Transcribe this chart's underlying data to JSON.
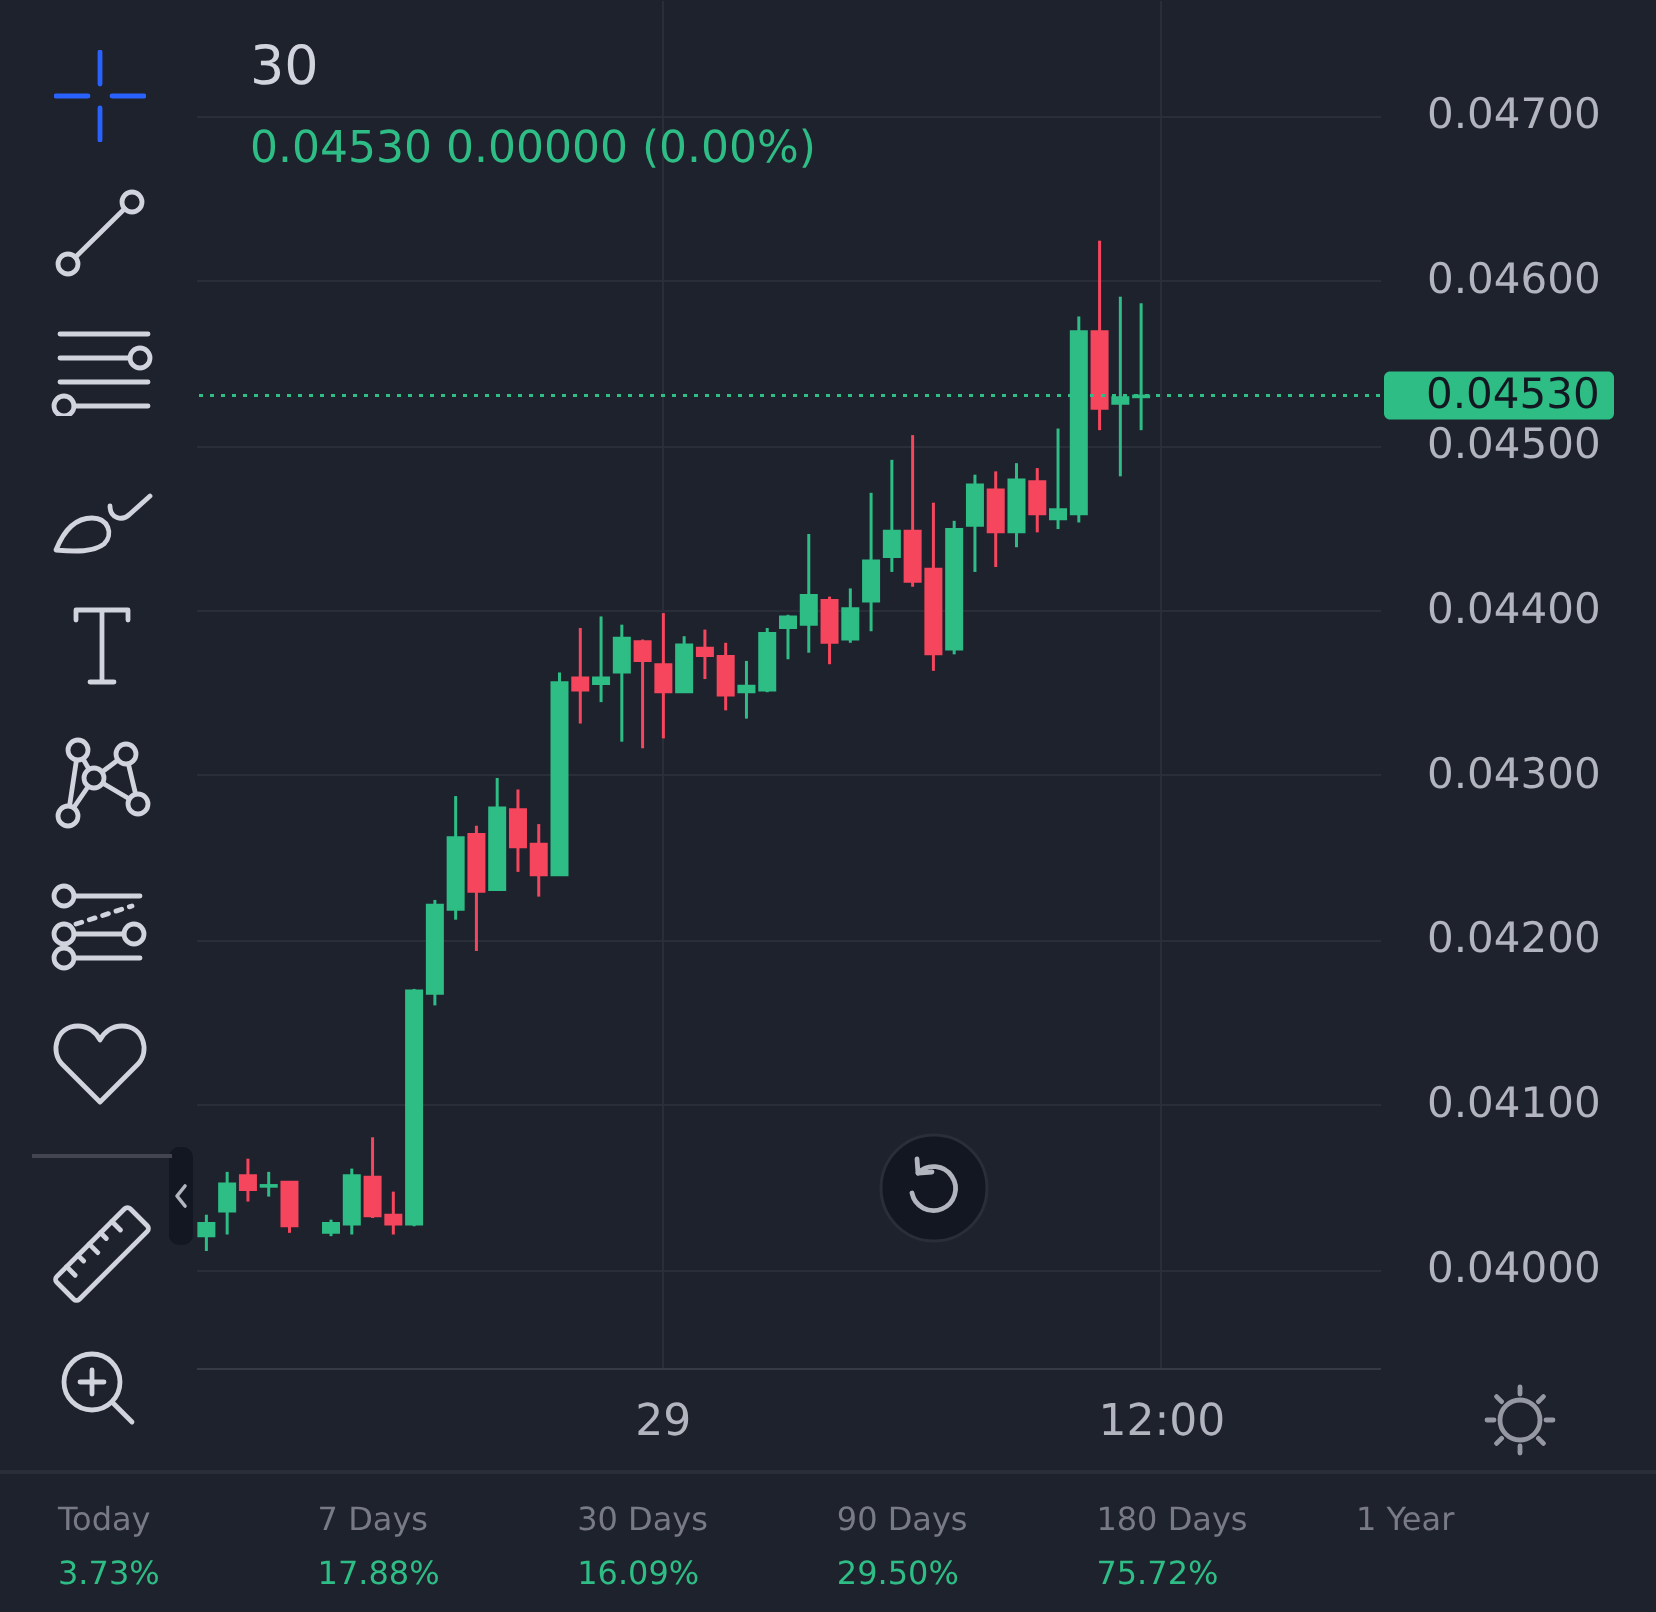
{
  "chart_data": {
    "type": "candlestick",
    "title": "30",
    "subtitle": "0.04530 0.00000 (0.00%)",
    "categories": [
      null,
      null,
      null,
      null,
      null,
      null,
      null,
      null,
      null,
      null,
      null,
      null,
      null,
      null,
      null,
      null,
      null,
      null,
      null,
      null,
      null,
      null,
      "29",
      null,
      null,
      null,
      null,
      null,
      null,
      null,
      null,
      null,
      null,
      null,
      null,
      null,
      null,
      null,
      null,
      null,
      null,
      null,
      null,
      null,
      null,
      null,
      "12:00",
      null,
      null,
      null,
      null,
      null,
      null,
      null,
      null,
      null,
      null
    ],
    "ohlc": [
      [
        0.0402,
        0.04033,
        0.04011,
        0.04028
      ],
      [
        0.04035,
        0.04059,
        0.04021,
        0.04052
      ],
      [
        0.04057,
        0.04067,
        0.04041,
        0.04048
      ],
      [
        0.0405,
        0.04059,
        0.04044,
        0.04051
      ],
      [
        0.04053,
        0.04053,
        0.04022,
        0.04026
      ],
      null,
      [
        0.04022,
        0.0403,
        0.0402,
        0.04028
      ],
      [
        0.04027,
        0.04061,
        0.04021,
        0.04057
      ],
      [
        0.04056,
        0.0408,
        0.04031,
        0.04032
      ],
      [
        0.04033,
        0.04047,
        0.04021,
        0.04027
      ],
      [
        0.04027,
        0.0417,
        0.04026,
        0.04169
      ],
      [
        0.04167,
        0.04224,
        0.0416,
        0.04221
      ],
      [
        0.04218,
        0.04287,
        0.04212,
        0.04262
      ],
      [
        0.04264,
        0.04269,
        0.04193,
        0.04229
      ],
      [
        0.0423,
        0.04298,
        0.0423,
        0.0428
      ],
      [
        0.04279,
        0.04291,
        0.04241,
        0.04256
      ],
      [
        0.04258,
        0.0427,
        0.04226,
        0.04239
      ],
      [
        0.04239,
        0.04362,
        0.04239,
        0.04356
      ],
      [
        0.04359,
        0.04389,
        0.04331,
        0.04351
      ],
      [
        0.04355,
        0.04396,
        0.04344,
        0.04359
      ],
      [
        0.04362,
        0.04391,
        0.0432,
        0.04383
      ],
      [
        0.04381,
        0.04382,
        0.04316,
        0.04369
      ],
      [
        0.04367,
        0.04398,
        0.04322,
        0.0435
      ],
      [
        0.0435,
        0.04384,
        0.0435,
        0.04379
      ],
      [
        0.04377,
        0.04388,
        0.04358,
        0.04372
      ],
      [
        0.04372,
        0.0438,
        0.04339,
        0.04348
      ],
      [
        0.0435,
        0.04369,
        0.04334,
        0.04354
      ],
      [
        0.04351,
        0.04389,
        0.0435,
        0.04386
      ],
      [
        0.04389,
        0.04397,
        0.0437,
        0.04396
      ],
      [
        0.04391,
        0.04446,
        0.04374,
        0.04409
      ],
      [
        0.04406,
        0.04408,
        0.04367,
        0.0438
      ],
      [
        0.04382,
        0.04413,
        0.0438,
        0.04401
      ],
      [
        0.04405,
        0.04471,
        0.04387,
        0.0443
      ],
      [
        0.04432,
        0.04491,
        0.04423,
        0.04448
      ],
      [
        0.04448,
        0.04506,
        0.04414,
        0.04417
      ],
      [
        0.04425,
        0.04465,
        0.04363,
        0.04373
      ],
      [
        0.04376,
        0.04454,
        0.04373,
        0.04449
      ],
      [
        0.04451,
        0.04482,
        0.04423,
        0.04476
      ],
      [
        0.04473,
        0.04484,
        0.04426,
        0.04447
      ],
      [
        0.04447,
        0.04489,
        0.04438,
        0.04479
      ],
      [
        0.04478,
        0.04486,
        0.04447,
        0.04458
      ],
      [
        0.04455,
        0.0451,
        0.04449,
        0.04461
      ],
      [
        0.04458,
        0.04578,
        0.04453,
        0.04569
      ],
      [
        0.04569,
        0.04624,
        0.04509,
        0.04522
      ],
      [
        0.04525,
        0.0459,
        0.04481,
        0.04529
      ],
      [
        0.04529,
        0.04586,
        0.04509,
        0.0453
      ],
      null,
      null,
      null,
      null,
      null,
      null,
      null,
      null,
      null,
      null,
      null
    ],
    "colors": [
      "#2ebd85",
      "#2ebd85",
      "#f6465d",
      "#2ebd85",
      "#f6465d",
      null,
      "#2ebd85",
      "#2ebd85",
      "#f6465d",
      "#f6465d",
      "#2ebd85",
      "#2ebd85",
      "#2ebd85",
      "#f6465d",
      "#2ebd85",
      "#f6465d",
      "#f6465d",
      "#2ebd85",
      "#f6465d",
      "#2ebd85",
      "#2ebd85",
      "#f6465d",
      "#f6465d",
      "#2ebd85",
      "#f6465d",
      "#f6465d",
      "#2ebd85",
      "#2ebd85",
      "#2ebd85",
      "#2ebd85",
      "#f6465d",
      "#2ebd85",
      "#2ebd85",
      "#2ebd85",
      "#f6465d",
      "#f6465d",
      "#2ebd85",
      "#2ebd85",
      "#f6465d",
      "#2ebd85",
      "#f6465d",
      "#2ebd85",
      "#2ebd85",
      "#f6465d",
      "#2ebd85",
      "#2ebd85",
      null,
      null,
      null,
      null,
      null,
      null,
      null,
      null,
      null,
      null,
      null
    ],
    "ylim": [
      0.0394,
      0.0477
    ],
    "yticks": [
      {
        "value": 0.04,
        "label": "0.04000"
      },
      {
        "value": 0.041,
        "label": "0.04100"
      },
      {
        "value": 0.042,
        "label": "0.04200"
      },
      {
        "value": 0.043,
        "label": "0.04300"
      },
      {
        "value": 0.044,
        "label": "0.04400"
      },
      {
        "value": 0.045,
        "label": "0.04500"
      },
      {
        "value": 0.046,
        "label": "0.04600"
      },
      {
        "value": 0.047,
        "label": "0.04700"
      }
    ],
    "grid": true,
    "ref_lines": [
      {
        "axis": "y",
        "value": 0.0453,
        "label": "0.04530",
        "color": "#2ebd85",
        "line_style": "dotted"
      }
    ],
    "annotations": [
      "Today",
      "3.73%",
      "7 Days",
      "17.88%",
      "30 Days",
      "16.09%",
      "90 Days",
      "29.50%",
      "180 Days",
      "75.72%",
      "1 Year"
    ]
  }
}
